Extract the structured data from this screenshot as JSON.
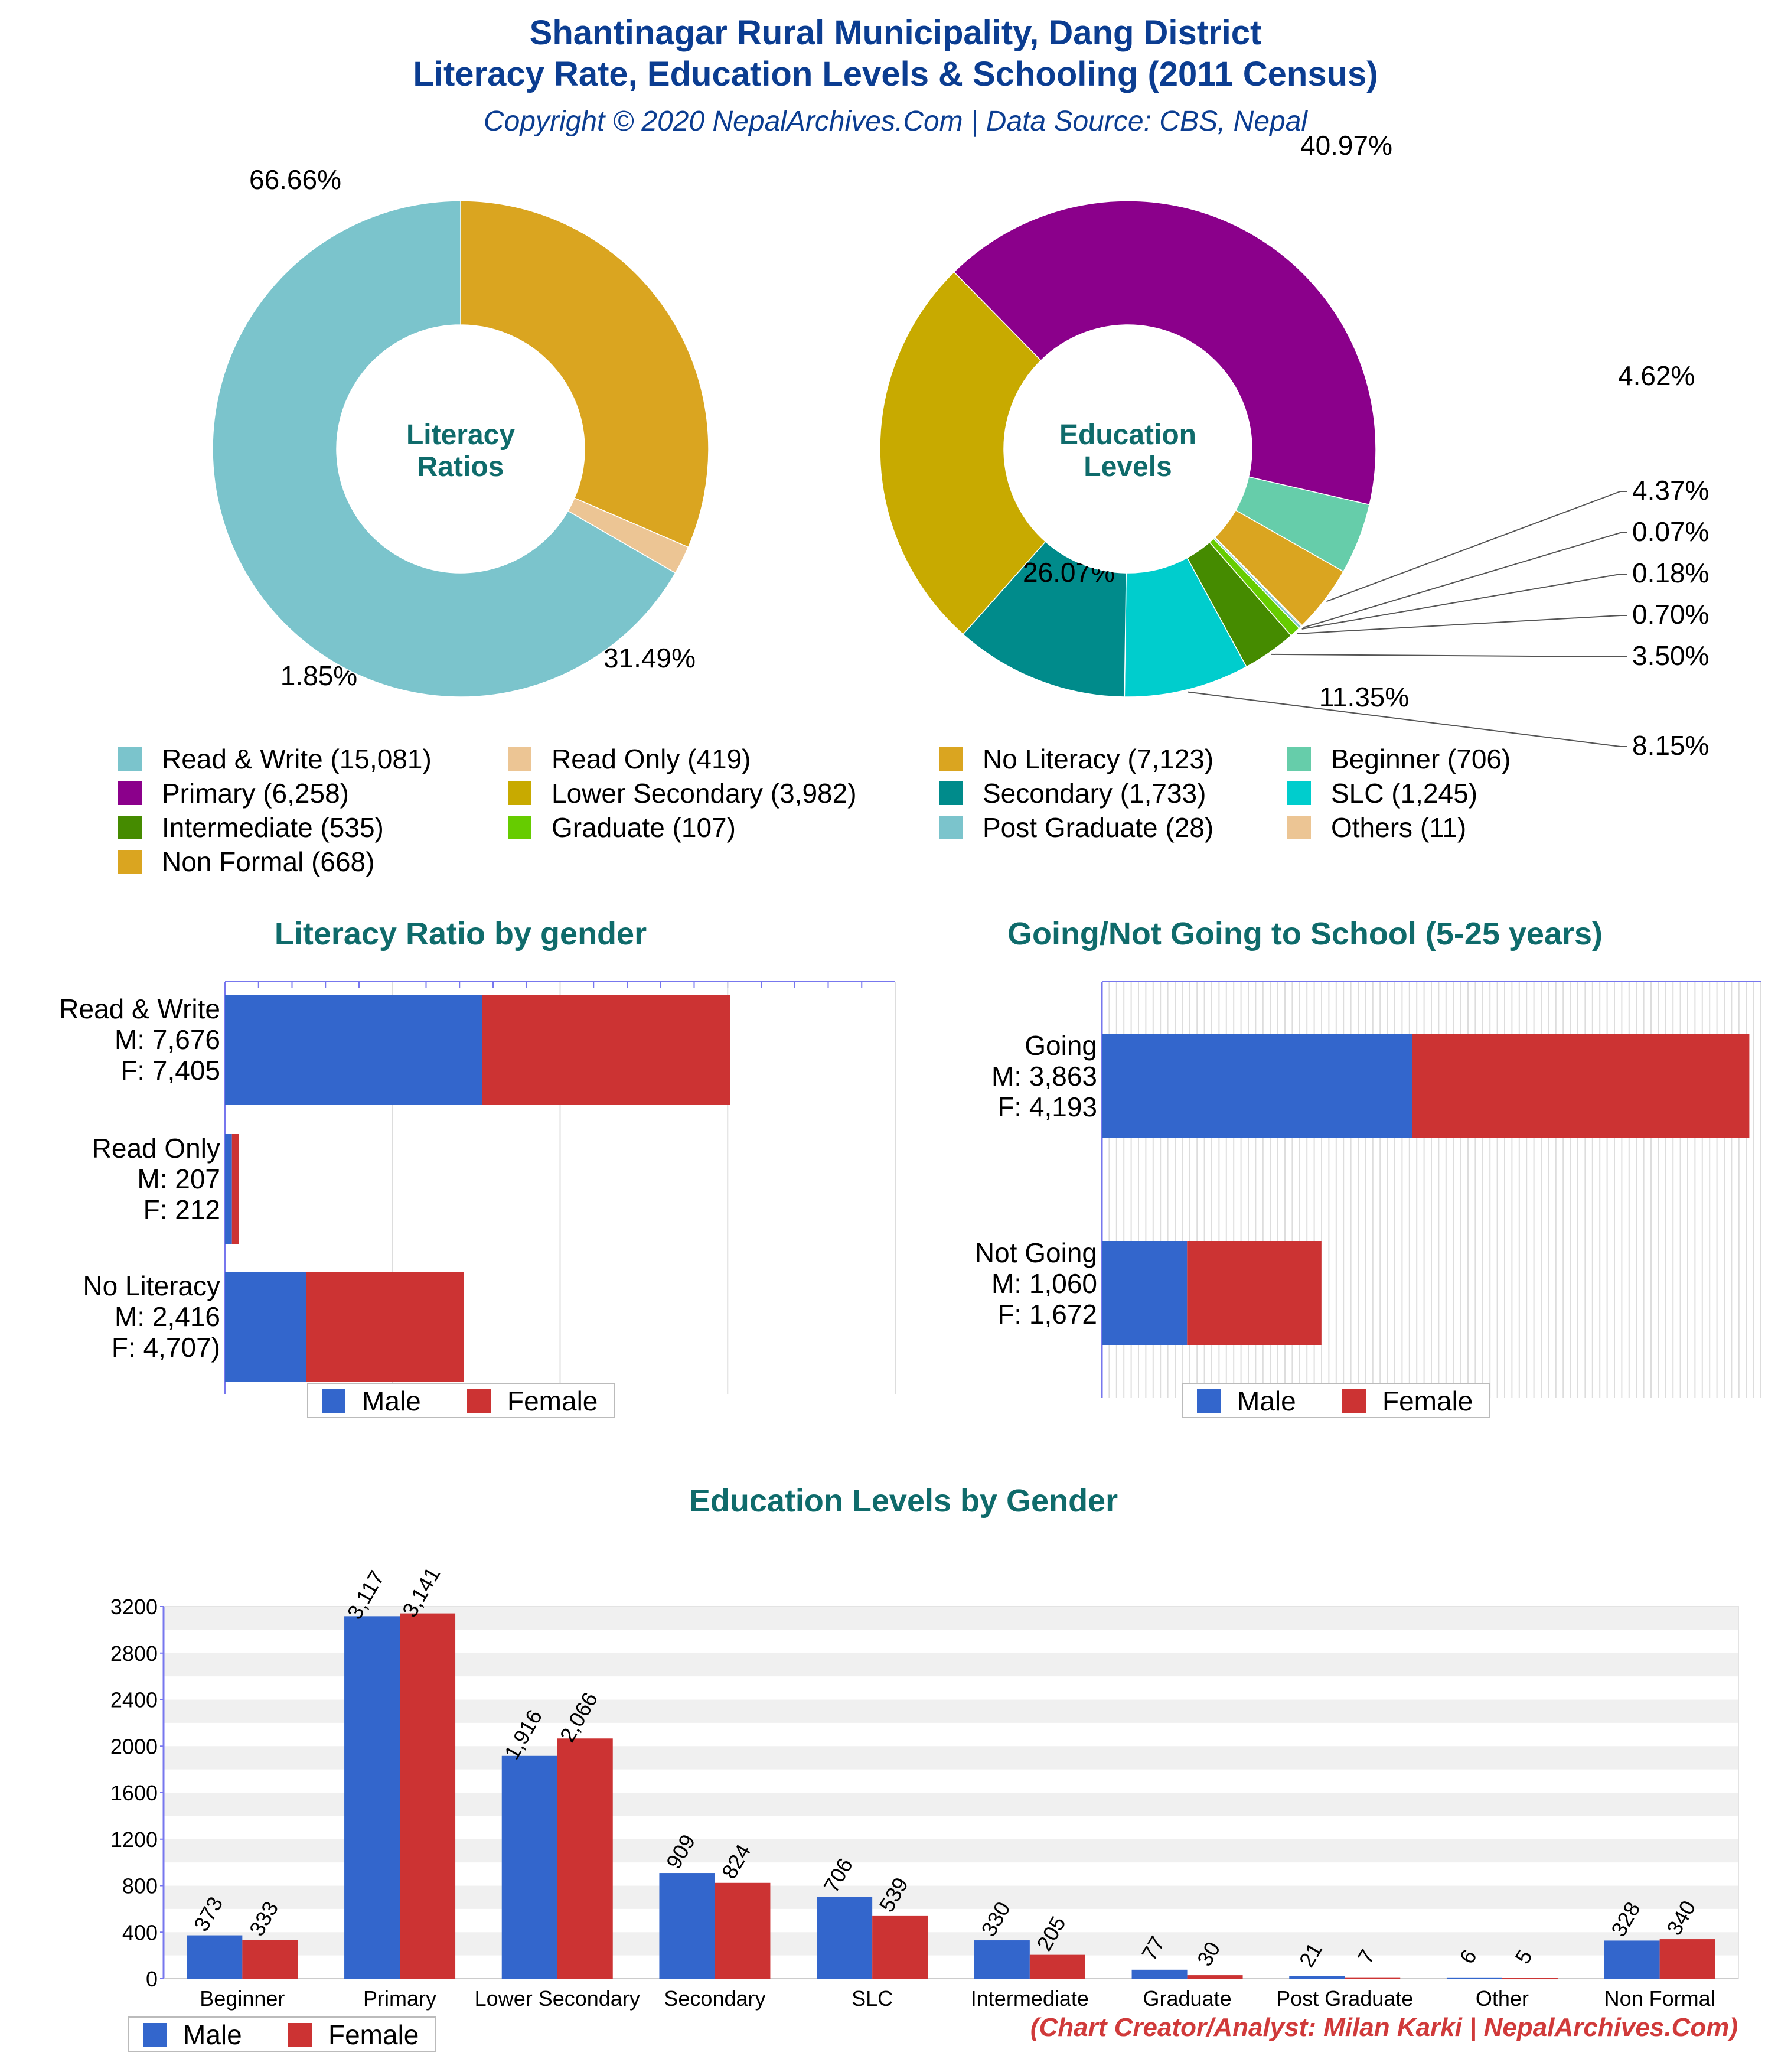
{
  "header": {
    "title_line1": "Shantinagar Rural Municipality, Dang District",
    "title_line2": "Literacy Rate, Education Levels & Schooling (2011 Census)",
    "credit": "Copyright © 2020 NepalArchives.Com | Data Source: CBS, Nepal"
  },
  "colors": {
    "male": "#3366cc",
    "female": "#cc3333",
    "title": "#0b3d91",
    "section": "#0f6b6b"
  },
  "legend_male": "Male",
  "legend_female": "Female",
  "footer": "(Chart Creator/Analyst: Milan Karki | NepalArchives.Com)",
  "chart_data": [
    {
      "id": "literacy_donut",
      "type": "pie",
      "center_label": [
        "Literacy",
        "Ratios"
      ],
      "start_angle_deg": 90,
      "slices": [
        {
          "name": "No Literacy",
          "value": 7123,
          "pct": "31.49%",
          "color": "#daa520"
        },
        {
          "name": "Read Only",
          "value": 419,
          "pct": "1.85%",
          "color": "#ecc594"
        },
        {
          "name": "Read & Write",
          "value": 15081,
          "pct": "66.66%",
          "color": "#7bc4cc"
        }
      ]
    },
    {
      "id": "education_donut",
      "type": "pie",
      "center_label": [
        "Education",
        "Levels"
      ],
      "start_angle_deg": -13,
      "slices": [
        {
          "name": "Beginner",
          "value": 706,
          "pct": "4.62%",
          "color": "#66cdaa"
        },
        {
          "name": "Non Formal",
          "value": 668,
          "pct": "4.37%",
          "color": "#daa520"
        },
        {
          "name": "Others",
          "value": 11,
          "pct": "0.07%",
          "color": "#ecc594"
        },
        {
          "name": "Post Graduate",
          "value": 28,
          "pct": "0.18%",
          "color": "#7bc4cc"
        },
        {
          "name": "Graduate",
          "value": 107,
          "pct": "0.70%",
          "color": "#66cc00"
        },
        {
          "name": "Intermediate",
          "value": 535,
          "pct": "3.50%",
          "color": "#458b00"
        },
        {
          "name": "SLC",
          "value": 1245,
          "pct": "8.15%",
          "color": "#00cdcd"
        },
        {
          "name": "Secondary",
          "value": 1733,
          "pct": "11.35%",
          "color": "#008b8b"
        },
        {
          "name": "Lower Secondary",
          "value": 3982,
          "pct": "26.07%",
          "color": "#c8aa00"
        },
        {
          "name": "Primary",
          "value": 6258,
          "pct": "40.97%",
          "color": "#8b008b"
        }
      ],
      "legend": [
        {
          "label": "Read & Write (15,081)",
          "color": "#7bc4cc"
        },
        {
          "label": "Read Only (419)",
          "color": "#ecc594"
        },
        {
          "label": "No Literacy (7,123)",
          "color": "#daa520"
        },
        {
          "label": "Beginner (706)",
          "color": "#66cdaa"
        },
        {
          "label": "Primary (6,258)",
          "color": "#8b008b"
        },
        {
          "label": "Lower Secondary (3,982)",
          "color": "#c8aa00"
        },
        {
          "label": "Secondary (1,733)",
          "color": "#008b8b"
        },
        {
          "label": "SLC (1,245)",
          "color": "#00cdcd"
        },
        {
          "label": "Intermediate (535)",
          "color": "#458b00"
        },
        {
          "label": "Graduate (107)",
          "color": "#66cc00"
        },
        {
          "label": "Post Graduate (28)",
          "color": "#7bc4cc"
        },
        {
          "label": "Others (11)",
          "color": "#ecc594"
        },
        {
          "label": "Non Formal (668)",
          "color": "#daa520"
        }
      ]
    },
    {
      "id": "literacy_by_gender",
      "type": "bar",
      "orientation": "horizontal",
      "stacked": true,
      "title": "Literacy Ratio by gender",
      "xlim": [
        0,
        20000
      ],
      "categories": [
        "Read & Write",
        "Read Only",
        "No Literacy"
      ],
      "category_labels": [
        [
          "Read & Write",
          "M: 7,676",
          "F: 7,405"
        ],
        [
          "Read Only",
          "M: 207",
          "F: 212"
        ],
        [
          "No Literacy",
          "M: 2,416",
          "F: 4,707)"
        ]
      ],
      "series": [
        {
          "name": "Male",
          "values": [
            7676,
            207,
            2416
          ]
        },
        {
          "name": "Female",
          "values": [
            7405,
            212,
            4707
          ]
        }
      ]
    },
    {
      "id": "schooling_by_gender",
      "type": "bar",
      "orientation": "horizontal",
      "stacked": true,
      "title": "Going/Not Going to School (5-25 years)",
      "xlim": [
        0,
        8200
      ],
      "categories": [
        "Going",
        "Not Going"
      ],
      "category_labels": [
        [
          "Going",
          "M: 3,863",
          "F: 4,193"
        ],
        [
          "Not Going",
          "M: 1,060",
          "F: 1,672"
        ]
      ],
      "series": [
        {
          "name": "Male",
          "values": [
            3863,
            1060
          ]
        },
        {
          "name": "Female",
          "values": [
            4193,
            1672
          ]
        }
      ]
    },
    {
      "id": "education_by_gender",
      "type": "bar",
      "title": "Education Levels by Gender",
      "ylim": [
        0,
        3200
      ],
      "yticks": [
        0,
        400,
        800,
        1200,
        1600,
        2000,
        2400,
        2800,
        3200
      ],
      "categories": [
        "Beginner",
        "Primary",
        "Lower Secondary",
        "Secondary",
        "SLC",
        "Intermediate",
        "Graduate",
        "Post Graduate",
        "Other",
        "Non Formal"
      ],
      "series": [
        {
          "name": "Male",
          "values": [
            373,
            3117,
            1916,
            909,
            706,
            330,
            77,
            21,
            6,
            328
          ],
          "labels": [
            "373",
            "3,117",
            "1,916",
            "909",
            "706",
            "330",
            "77",
            "21",
            "6",
            "328"
          ]
        },
        {
          "name": "Female",
          "values": [
            333,
            3141,
            2066,
            824,
            539,
            205,
            30,
            7,
            5,
            340
          ],
          "labels": [
            "333",
            "3,141",
            "2,066",
            "824",
            "539",
            "205",
            "30",
            "7",
            "5",
            "340"
          ]
        }
      ]
    }
  ]
}
